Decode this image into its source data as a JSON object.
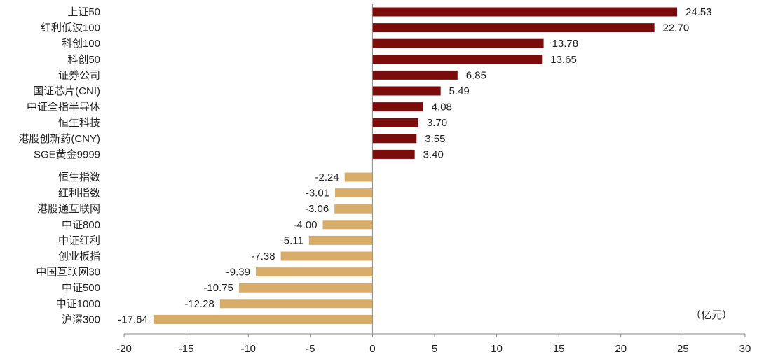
{
  "chart_data": {
    "type": "bar",
    "orientation": "horizontal",
    "unit": "（亿元）",
    "xlim": [
      -20,
      30
    ],
    "xticks": [
      -20,
      -15,
      -10,
      -5,
      0,
      5,
      10,
      15,
      20,
      25,
      30
    ],
    "grid": false,
    "positive_color": "#7b0c0c",
    "negative_color": "#d8ad6a",
    "categories": [
      "上证50",
      "红利低波100",
      "科创100",
      "科创50",
      "证券公司",
      "国证芯片(CNI)",
      "中证全指半导体",
      "恒生科技",
      "港股创新药(CNY)",
      "SGE黄金9999",
      "恒生指数",
      "红利指数",
      "港股通互联网",
      "中证800",
      "中证红利",
      "创业板指",
      "中国互联网30",
      "中证500",
      "中证1000",
      "沪深300"
    ],
    "values": [
      24.53,
      22.7,
      13.78,
      13.65,
      6.85,
      5.49,
      4.08,
      3.7,
      3.55,
      3.4,
      -2.24,
      -3.01,
      -3.06,
      -4.0,
      -5.11,
      -7.38,
      -9.39,
      -10.75,
      -12.28,
      -17.64
    ],
    "value_labels": [
      "24.53",
      "22.70",
      "13.78",
      "13.65",
      "6.85",
      "5.49",
      "4.08",
      "3.70",
      "3.55",
      "3.40",
      "-2.24",
      "-3.01",
      "-3.06",
      "-4.00",
      "-5.11",
      "-7.38",
      "-9.39",
      "-10.75",
      "-12.28",
      "-17.64"
    ]
  }
}
